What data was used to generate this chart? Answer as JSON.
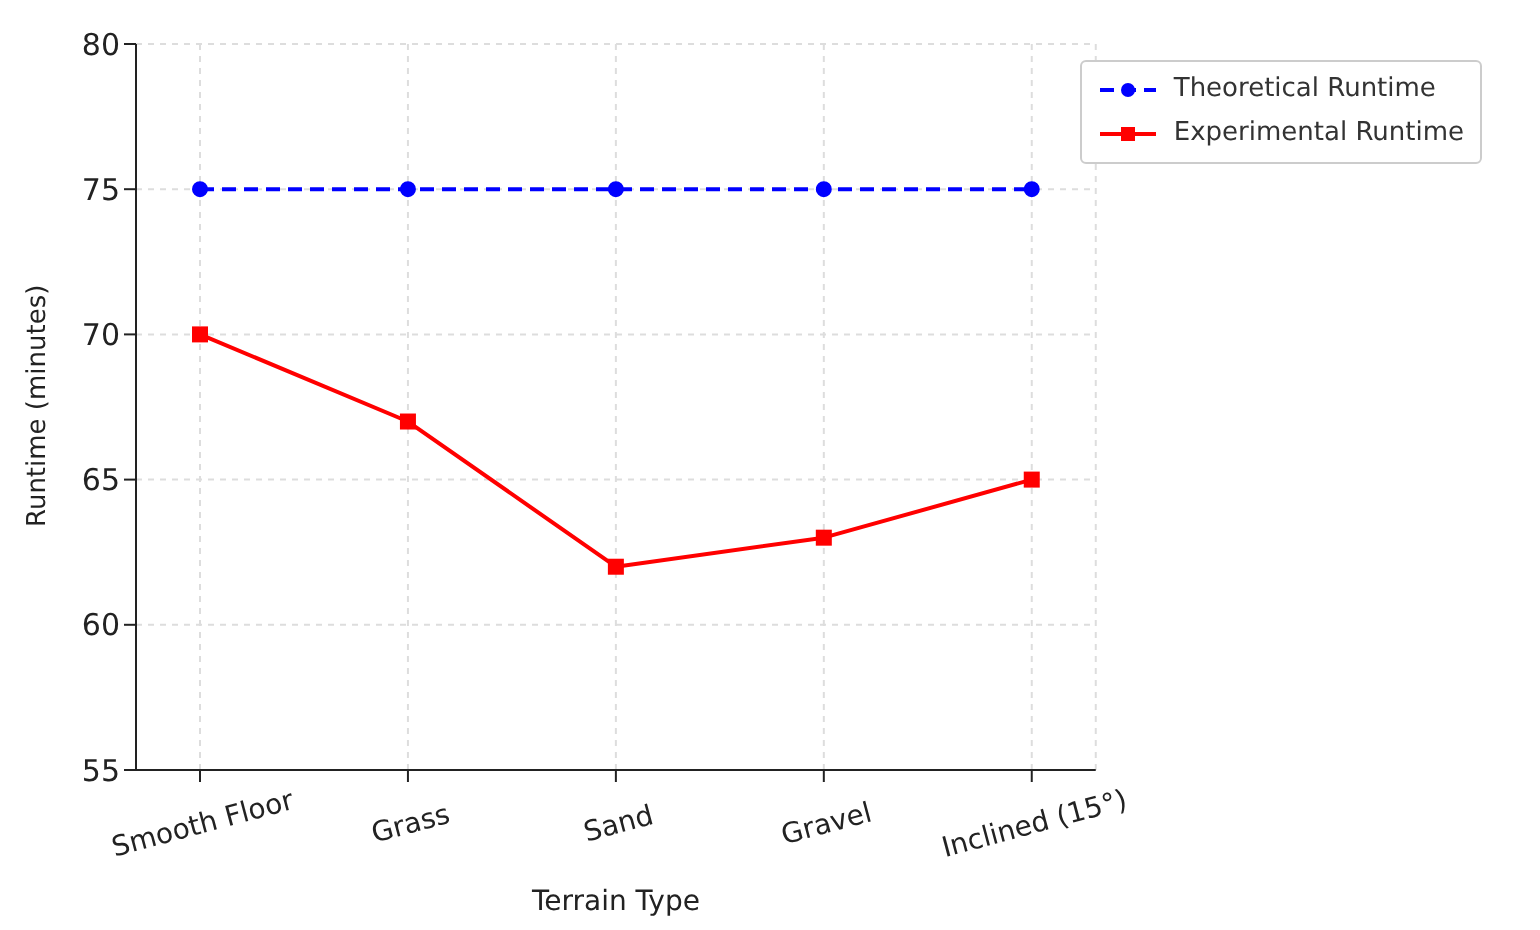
{
  "chart_data": {
    "type": "line",
    "xlabel": "Terrain Type",
    "ylabel": "Runtime (minutes)",
    "categories": [
      "Smooth Floor",
      "Grass",
      "Sand",
      "Gravel",
      "Inclined (15°)"
    ],
    "series": [
      {
        "name": "Theoretical Runtime",
        "color": "#0000ff",
        "values": [
          75,
          75,
          75,
          75,
          75
        ],
        "marker": "circle",
        "line_style": "dashed"
      },
      {
        "name": "Experimental Runtime",
        "color": "#ff0000",
        "values": [
          70,
          67,
          62,
          63,
          65
        ],
        "marker": "square",
        "line_style": "solid"
      }
    ],
    "ylim": [
      55,
      80
    ],
    "yticks": [
      55,
      60,
      65,
      70,
      75,
      80
    ],
    "grid": true,
    "legend": "top right"
  }
}
